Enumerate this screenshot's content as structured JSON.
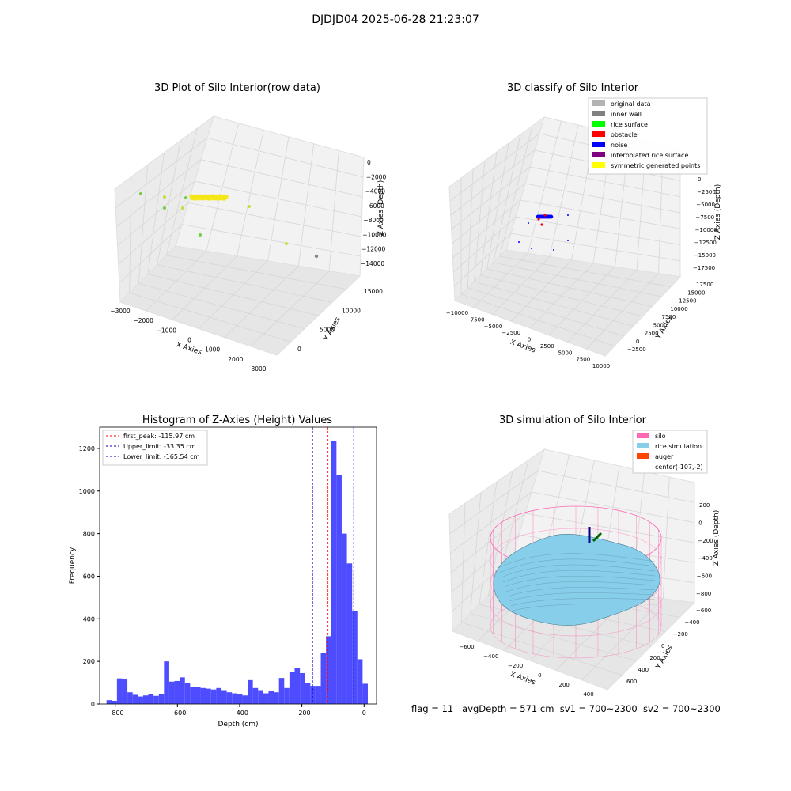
{
  "figure_title": "DJDJD04 2025-06-28 21:23:07",
  "footer": {
    "flag": "flag = 11",
    "avg_depth": "avgDepth = 571 cm",
    "sv1": "sv1 = 700~2300",
    "sv2": "sv2 = 700~2300"
  },
  "colors": {
    "original": "#b3b3b3",
    "inner_wall": "#808080",
    "rice_surface": "#00ff00",
    "obstacle": "#ff0000",
    "noise": "#0000ff",
    "interpolated": "#800080",
    "symmetric": "#ffff00",
    "hist_bar": "#4d4dff",
    "silo": "#ff69b4",
    "rice_sim": "#87ceeb",
    "auger": "#ff4500"
  },
  "chart_data": [
    {
      "type": "scatter",
      "title": "3D Plot of Silo Interior(row data)",
      "xlabel": "X Axies",
      "ylabel": "Y Axies",
      "zlabel": "Z Axies (Depth)",
      "x_ticks": [
        "−3000",
        "−2000",
        "−1000",
        "0",
        "1000",
        "2000",
        "3000"
      ],
      "y_ticks": [
        "0",
        "5000",
        "10000",
        "15000"
      ],
      "z_ticks": [
        "0",
        "−2000",
        "−4000",
        "−6000",
        "−8000",
        "−10000",
        "−12000",
        "−14000"
      ]
    },
    {
      "type": "scatter",
      "title": "3D classify of Silo Interior",
      "xlabel": "X Axies",
      "ylabel": "Y Axies",
      "zlabel": "Z Axies (Depth)",
      "x_ticks": [
        "−10000",
        "−7500",
        "−5000",
        "−2500",
        "0",
        "2500",
        "5000",
        "7500",
        "10000"
      ],
      "y_ticks": [
        "−2500",
        "0",
        "2500",
        "5000",
        "7500",
        "10000",
        "12500",
        "15000",
        "17500"
      ],
      "z_ticks": [
        "0",
        "−2500",
        "−5000",
        "−7500",
        "−10000",
        "−12500",
        "−15000",
        "−17500"
      ],
      "legend": [
        "original data",
        "inner wall",
        "rice surface",
        "obstacle",
        "noise",
        "interpolated rice surface",
        "symmetric generated points"
      ]
    },
    {
      "type": "bar",
      "title": "Histogram of Z-Axies (Height) Values",
      "xlabel": "Depth (cm)",
      "ylabel": "Frequency",
      "xlim": [
        -850,
        40
      ],
      "ylim": [
        0,
        1300
      ],
      "x_ticks": [
        -800,
        -600,
        -400,
        -200,
        0
      ],
      "x_tick_labels": [
        "−800",
        "−600",
        "−400",
        "−200",
        "0"
      ],
      "y_ticks": [
        0,
        200,
        400,
        600,
        800,
        1000,
        1200
      ],
      "bin_start": -828,
      "bin_width": 16.8,
      "values": [
        18,
        15,
        120,
        115,
        55,
        43,
        35,
        40,
        45,
        38,
        48,
        200,
        105,
        108,
        125,
        100,
        80,
        78,
        75,
        72,
        68,
        75,
        65,
        55,
        50,
        45,
        40,
        112,
        75,
        65,
        50,
        62,
        55,
        122,
        75,
        150,
        170,
        145,
        100,
        85,
        85,
        238,
        318,
        1235,
        1075,
        800,
        660,
        435,
        210,
        95
      ],
      "lines": [
        {
          "label": "first_peak: -115.97 cm",
          "x": -115.97,
          "color": "#ff0000"
        },
        {
          "label": "Upper_limit: -33.35 cm",
          "x": -33.35,
          "color": "#0000cc"
        },
        {
          "label": "Lower_limit: -165.54 cm",
          "x": -165.54,
          "color": "#0000cc"
        }
      ]
    },
    {
      "type": "area",
      "title": "3D simulation of Silo Interior",
      "xlabel": "X Axies",
      "ylabel": "Y Axies",
      "zlabel": "Z Axies (Depth)",
      "x_ticks": [
        "−600",
        "−400",
        "−200",
        "0",
        "200",
        "400"
      ],
      "y_ticks": [
        "600",
        "400",
        "200",
        "0",
        "−200",
        "−400",
        "−600"
      ],
      "z_ticks": [
        "200",
        "0",
        "−200",
        "−400",
        "−600",
        "−800"
      ],
      "legend": [
        "silo",
        "rice simulation",
        "auger",
        "center(-107,-2)"
      ]
    }
  ]
}
